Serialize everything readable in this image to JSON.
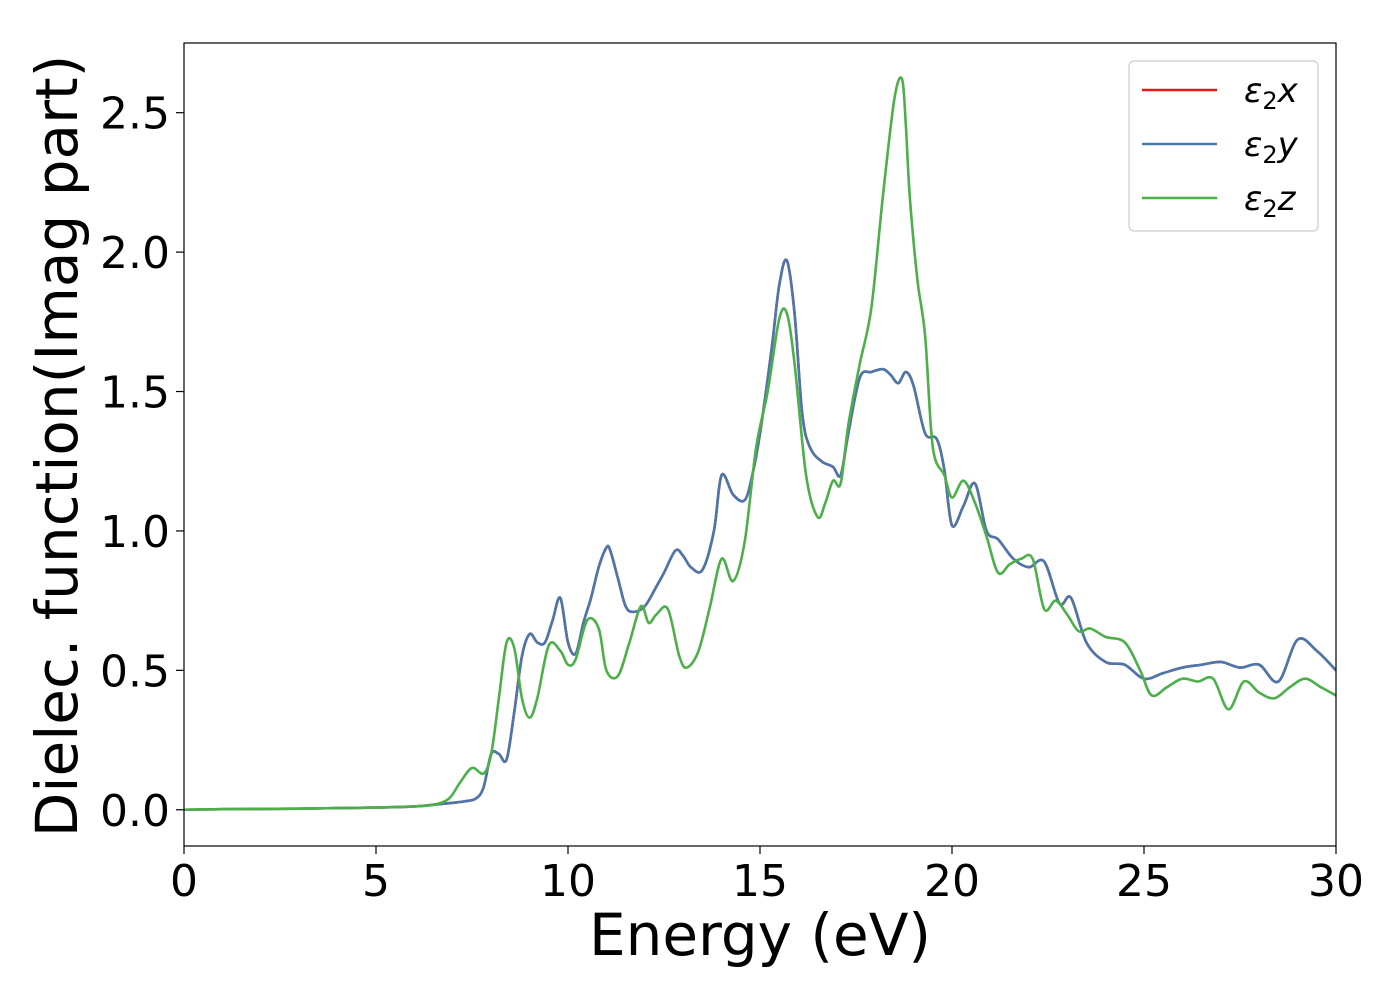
{
  "chart_data": {
    "type": "line",
    "xlabel": "Energy (eV)",
    "ylabel": "Dielec. function(Imag part)",
    "xlim": [
      0,
      30
    ],
    "ylim": [
      -0.13,
      2.75
    ],
    "x_ticks": [
      0,
      5,
      10,
      15,
      20,
      25,
      30
    ],
    "x_tick_labels": [
      "0",
      "5",
      "10",
      "15",
      "20",
      "25",
      "30"
    ],
    "y_ticks": [
      0.0,
      0.5,
      1.0,
      1.5,
      2.0,
      2.5
    ],
    "y_tick_labels": [
      "0.0",
      "0.5",
      "1.0",
      "1.5",
      "2.0",
      "2.5"
    ],
    "grid": false,
    "legend_position": "top-right",
    "series": [
      {
        "name": "ε2x",
        "legend_base": "ε",
        "legend_sub": "2",
        "legend_var": "x",
        "color": "#e41a1c",
        "x": [
          0,
          1,
          2,
          3,
          4,
          5,
          6,
          6.5,
          7,
          7.3,
          7.6,
          7.8,
          8.0,
          8.2,
          8.4,
          8.6,
          8.8,
          9.0,
          9.2,
          9.4,
          9.6,
          9.8,
          10.0,
          10.2,
          10.4,
          10.6,
          10.8,
          11.0,
          11.1,
          11.3,
          11.5,
          11.7,
          12.0,
          12.3,
          12.5,
          12.8,
          13.0,
          13.2,
          13.5,
          13.8,
          14.0,
          14.3,
          14.6,
          14.8,
          15.0,
          15.3,
          15.5,
          15.7,
          15.9,
          16.1,
          16.3,
          16.6,
          16.9,
          17.1,
          17.3,
          17.6,
          17.9,
          18.2,
          18.4,
          18.6,
          18.8,
          19.0,
          19.3,
          19.6,
          19.8,
          20.0,
          20.3,
          20.6,
          20.9,
          21.2,
          21.6,
          22.0,
          22.4,
          22.8,
          23.1,
          23.5,
          24.0,
          24.5,
          25.0,
          25.5,
          26.0,
          26.5,
          27.0,
          27.5,
          28.0,
          28.5,
          29.0,
          29.5,
          30.0
        ],
        "values": [
          0,
          0.002,
          0.003,
          0.004,
          0.006,
          0.008,
          0.012,
          0.018,
          0.025,
          0.03,
          0.04,
          0.08,
          0.2,
          0.2,
          0.18,
          0.35,
          0.55,
          0.63,
          0.6,
          0.6,
          0.68,
          0.76,
          0.6,
          0.56,
          0.67,
          0.76,
          0.87,
          0.94,
          0.93,
          0.83,
          0.73,
          0.71,
          0.73,
          0.8,
          0.85,
          0.93,
          0.91,
          0.87,
          0.86,
          1.0,
          1.2,
          1.13,
          1.11,
          1.2,
          1.35,
          1.65,
          1.88,
          1.97,
          1.78,
          1.42,
          1.3,
          1.25,
          1.23,
          1.2,
          1.35,
          1.55,
          1.57,
          1.58,
          1.56,
          1.53,
          1.57,
          1.52,
          1.35,
          1.33,
          1.22,
          1.02,
          1.09,
          1.17,
          1.0,
          0.97,
          0.9,
          0.87,
          0.89,
          0.74,
          0.76,
          0.6,
          0.53,
          0.52,
          0.47,
          0.49,
          0.51,
          0.52,
          0.53,
          0.51,
          0.52,
          0.46,
          0.61,
          0.57,
          0.5
        ]
      },
      {
        "name": "ε2y",
        "legend_base": "ε",
        "legend_sub": "2",
        "legend_var": "y",
        "color": "#4a78ad",
        "x": [
          0,
          1,
          2,
          3,
          4,
          5,
          6,
          6.5,
          7,
          7.3,
          7.6,
          7.8,
          8.0,
          8.2,
          8.4,
          8.6,
          8.8,
          9.0,
          9.2,
          9.4,
          9.6,
          9.8,
          10.0,
          10.2,
          10.4,
          10.6,
          10.8,
          11.0,
          11.1,
          11.3,
          11.5,
          11.7,
          12.0,
          12.3,
          12.5,
          12.8,
          13.0,
          13.2,
          13.5,
          13.8,
          14.0,
          14.3,
          14.6,
          14.8,
          15.0,
          15.3,
          15.5,
          15.7,
          15.9,
          16.1,
          16.3,
          16.6,
          16.9,
          17.1,
          17.3,
          17.6,
          17.9,
          18.2,
          18.4,
          18.6,
          18.8,
          19.0,
          19.3,
          19.6,
          19.8,
          20.0,
          20.3,
          20.6,
          20.9,
          21.2,
          21.6,
          22.0,
          22.4,
          22.8,
          23.1,
          23.5,
          24.0,
          24.5,
          25.0,
          25.5,
          26.0,
          26.5,
          27.0,
          27.5,
          28.0,
          28.5,
          29.0,
          29.5,
          30.0
        ],
        "values": [
          0,
          0.002,
          0.003,
          0.004,
          0.006,
          0.008,
          0.012,
          0.018,
          0.025,
          0.03,
          0.04,
          0.08,
          0.2,
          0.2,
          0.18,
          0.35,
          0.55,
          0.63,
          0.6,
          0.6,
          0.68,
          0.76,
          0.6,
          0.56,
          0.67,
          0.76,
          0.87,
          0.94,
          0.93,
          0.83,
          0.73,
          0.71,
          0.73,
          0.8,
          0.85,
          0.93,
          0.91,
          0.87,
          0.86,
          1.0,
          1.2,
          1.13,
          1.11,
          1.2,
          1.35,
          1.65,
          1.88,
          1.97,
          1.78,
          1.42,
          1.3,
          1.25,
          1.23,
          1.2,
          1.35,
          1.55,
          1.57,
          1.58,
          1.56,
          1.53,
          1.57,
          1.52,
          1.35,
          1.33,
          1.22,
          1.02,
          1.09,
          1.17,
          1.0,
          0.97,
          0.9,
          0.87,
          0.89,
          0.74,
          0.76,
          0.6,
          0.53,
          0.52,
          0.47,
          0.49,
          0.51,
          0.52,
          0.53,
          0.51,
          0.52,
          0.46,
          0.61,
          0.57,
          0.5
        ]
      },
      {
        "name": "ε2z",
        "legend_base": "ε",
        "legend_sub": "2",
        "legend_var": "z",
        "color": "#4daf4a",
        "x": [
          0,
          1,
          2,
          3,
          4,
          5,
          6,
          6.5,
          6.9,
          7.2,
          7.5,
          7.8,
          8.0,
          8.2,
          8.4,
          8.6,
          8.8,
          9.0,
          9.2,
          9.5,
          9.8,
          10.0,
          10.2,
          10.5,
          10.8,
          11.0,
          11.3,
          11.6,
          11.9,
          12.1,
          12.3,
          12.6,
          12.9,
          13.1,
          13.4,
          13.7,
          14.0,
          14.3,
          14.6,
          14.9,
          15.2,
          15.5,
          15.7,
          15.9,
          16.2,
          16.5,
          16.7,
          16.9,
          17.1,
          17.3,
          17.6,
          17.9,
          18.2,
          18.5,
          18.7,
          18.8,
          18.9,
          19.1,
          19.3,
          19.5,
          19.8,
          20.0,
          20.3,
          20.6,
          20.9,
          21.2,
          21.5,
          21.8,
          22.1,
          22.4,
          22.7,
          23.0,
          23.3,
          23.6,
          24.0,
          24.5,
          24.9,
          25.2,
          25.6,
          26.0,
          26.4,
          26.8,
          27.2,
          27.6,
          28.0,
          28.4,
          28.8,
          29.2,
          29.6,
          30.0
        ],
        "values": [
          0,
          0.002,
          0.003,
          0.004,
          0.006,
          0.008,
          0.012,
          0.018,
          0.04,
          0.1,
          0.15,
          0.13,
          0.2,
          0.4,
          0.6,
          0.58,
          0.4,
          0.33,
          0.4,
          0.59,
          0.57,
          0.52,
          0.54,
          0.68,
          0.65,
          0.5,
          0.48,
          0.6,
          0.73,
          0.67,
          0.7,
          0.72,
          0.55,
          0.51,
          0.57,
          0.73,
          0.9,
          0.82,
          0.96,
          1.3,
          1.5,
          1.76,
          1.78,
          1.6,
          1.2,
          1.05,
          1.1,
          1.18,
          1.17,
          1.38,
          1.6,
          1.8,
          2.2,
          2.55,
          2.62,
          2.45,
          2.2,
          1.9,
          1.7,
          1.3,
          1.2,
          1.12,
          1.18,
          1.1,
          0.98,
          0.85,
          0.88,
          0.9,
          0.9,
          0.72,
          0.75,
          0.7,
          0.64,
          0.65,
          0.62,
          0.6,
          0.5,
          0.41,
          0.44,
          0.47,
          0.46,
          0.47,
          0.36,
          0.46,
          0.42,
          0.4,
          0.44,
          0.47,
          0.44,
          0.41
        ]
      }
    ]
  }
}
